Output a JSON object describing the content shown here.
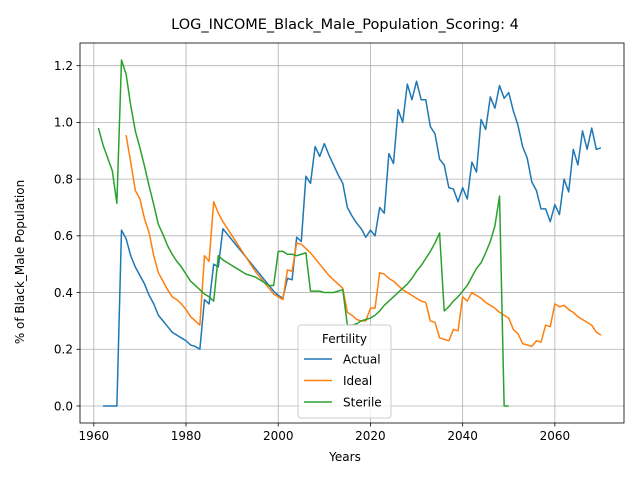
{
  "chart_data": {
    "type": "line",
    "title": "LOG_INCOME_Black_Male_Population_Scoring: 4",
    "xlabel": "Years",
    "ylabel": "% of Black_Male Population",
    "xlim": [
      1957,
      2075
    ],
    "ylim": [
      -0.06,
      1.28
    ],
    "xticks": [
      1960,
      1980,
      2000,
      2020,
      2040,
      2060
    ],
    "yticks": [
      0.0,
      0.2,
      0.4,
      0.6,
      0.8,
      1.0,
      1.2
    ],
    "ytick_labels": [
      "0.0",
      "0.2",
      "0.4",
      "0.6",
      "0.8",
      "1.0",
      "1.2"
    ],
    "grid": true,
    "legend_title": "Fertility",
    "legend_position": "lower center",
    "series": [
      {
        "name": "Actual",
        "color": "#1f77b4",
        "points": [
          [
            1962,
            0.0
          ],
          [
            1963,
            0.0
          ],
          [
            1964,
            0.0
          ],
          [
            1965,
            0.0
          ],
          [
            1966,
            0.62
          ],
          [
            1967,
            0.59
          ],
          [
            1968,
            0.53
          ],
          [
            1969,
            0.49
          ],
          [
            1970,
            0.46
          ],
          [
            1971,
            0.43
          ],
          [
            1972,
            0.39
          ],
          [
            1973,
            0.36
          ],
          [
            1974,
            0.32
          ],
          [
            1975,
            0.3
          ],
          [
            1976,
            0.28
          ],
          [
            1977,
            0.26
          ],
          [
            1978,
            0.25
          ],
          [
            1979,
            0.24
          ],
          [
            1980,
            0.23
          ],
          [
            1981,
            0.215
          ],
          [
            1982,
            0.21
          ],
          [
            1983,
            0.2
          ],
          [
            1984,
            0.375
          ],
          [
            1985,
            0.36
          ],
          [
            1986,
            0.5
          ],
          [
            1987,
            0.49
          ],
          [
            1988,
            0.625
          ],
          [
            1989,
            0.605
          ],
          [
            1990,
            0.585
          ],
          [
            1991,
            0.565
          ],
          [
            1992,
            0.545
          ],
          [
            1993,
            0.525
          ],
          [
            1994,
            0.505
          ],
          [
            1995,
            0.485
          ],
          [
            1996,
            0.465
          ],
          [
            1997,
            0.445
          ],
          [
            1998,
            0.425
          ],
          [
            1999,
            0.405
          ],
          [
            2000,
            0.39
          ],
          [
            2001,
            0.38
          ],
          [
            2002,
            0.45
          ],
          [
            2003,
            0.445
          ],
          [
            2004,
            0.595
          ],
          [
            2005,
            0.58
          ],
          [
            2006,
            0.81
          ],
          [
            2007,
            0.785
          ],
          [
            2008,
            0.915
          ],
          [
            2009,
            0.88
          ],
          [
            2010,
            0.925
          ],
          [
            2011,
            0.885
          ],
          [
            2012,
            0.85
          ],
          [
            2013,
            0.815
          ],
          [
            2014,
            0.785
          ],
          [
            2015,
            0.7
          ],
          [
            2016,
            0.67
          ],
          [
            2017,
            0.645
          ],
          [
            2018,
            0.625
          ],
          [
            2019,
            0.595
          ],
          [
            2020,
            0.62
          ],
          [
            2021,
            0.6
          ],
          [
            2022,
            0.7
          ],
          [
            2023,
            0.68
          ],
          [
            2024,
            0.89
          ],
          [
            2025,
            0.855
          ],
          [
            2026,
            1.045
          ],
          [
            2027,
            1.0
          ],
          [
            2028,
            1.135
          ],
          [
            2029,
            1.08
          ],
          [
            2030,
            1.145
          ],
          [
            2031,
            1.08
          ],
          [
            2032,
            1.08
          ],
          [
            2033,
            0.985
          ],
          [
            2034,
            0.96
          ],
          [
            2035,
            0.87
          ],
          [
            2036,
            0.85
          ],
          [
            2037,
            0.77
          ],
          [
            2038,
            0.765
          ],
          [
            2039,
            0.72
          ],
          [
            2040,
            0.77
          ],
          [
            2041,
            0.73
          ],
          [
            2042,
            0.86
          ],
          [
            2043,
            0.825
          ],
          [
            2044,
            1.01
          ],
          [
            2045,
            0.975
          ],
          [
            2046,
            1.09
          ],
          [
            2047,
            1.05
          ],
          [
            2048,
            1.13
          ],
          [
            2049,
            1.085
          ],
          [
            2050,
            1.105
          ],
          [
            2051,
            1.04
          ],
          [
            2052,
            0.99
          ],
          [
            2053,
            0.915
          ],
          [
            2054,
            0.875
          ],
          [
            2055,
            0.79
          ],
          [
            2056,
            0.76
          ],
          [
            2057,
            0.695
          ],
          [
            2058,
            0.695
          ],
          [
            2059,
            0.65
          ],
          [
            2060,
            0.71
          ],
          [
            2061,
            0.675
          ],
          [
            2062,
            0.8
          ],
          [
            2063,
            0.755
          ],
          [
            2064,
            0.905
          ],
          [
            2065,
            0.85
          ],
          [
            2066,
            0.97
          ],
          [
            2067,
            0.905
          ],
          [
            2068,
            0.98
          ],
          [
            2069,
            0.905
          ],
          [
            2070,
            0.91
          ]
        ]
      },
      {
        "name": "Ideal",
        "color": "#ff7f0e",
        "points": [
          [
            1967,
            0.955
          ],
          [
            1968,
            0.86
          ],
          [
            1969,
            0.76
          ],
          [
            1970,
            0.73
          ],
          [
            1971,
            0.66
          ],
          [
            1972,
            0.61
          ],
          [
            1973,
            0.53
          ],
          [
            1974,
            0.47
          ],
          [
            1975,
            0.44
          ],
          [
            1976,
            0.41
          ],
          [
            1977,
            0.385
          ],
          [
            1978,
            0.375
          ],
          [
            1979,
            0.36
          ],
          [
            1980,
            0.34
          ],
          [
            1981,
            0.315
          ],
          [
            1982,
            0.3
          ],
          [
            1983,
            0.285
          ],
          [
            1984,
            0.53
          ],
          [
            1985,
            0.51
          ],
          [
            1986,
            0.72
          ],
          [
            1987,
            0.68
          ],
          [
            1988,
            0.65
          ],
          [
            1989,
            0.625
          ],
          [
            1990,
            0.6
          ],
          [
            1991,
            0.575
          ],
          [
            1992,
            0.55
          ],
          [
            1993,
            0.525
          ],
          [
            1994,
            0.5
          ],
          [
            1995,
            0.475
          ],
          [
            1996,
            0.455
          ],
          [
            1997,
            0.435
          ],
          [
            1998,
            0.415
          ],
          [
            1999,
            0.395
          ],
          [
            2000,
            0.385
          ],
          [
            2001,
            0.375
          ],
          [
            2002,
            0.48
          ],
          [
            2003,
            0.475
          ],
          [
            2004,
            0.575
          ],
          [
            2005,
            0.57
          ],
          [
            2006,
            0.555
          ],
          [
            2007,
            0.54
          ],
          [
            2008,
            0.52
          ],
          [
            2009,
            0.5
          ],
          [
            2010,
            0.48
          ],
          [
            2011,
            0.46
          ],
          [
            2012,
            0.445
          ],
          [
            2013,
            0.43
          ],
          [
            2014,
            0.415
          ],
          [
            2015,
            0.33
          ],
          [
            2016,
            0.32
          ],
          [
            2017,
            0.305
          ],
          [
            2018,
            0.3
          ],
          [
            2019,
            0.3
          ],
          [
            2020,
            0.345
          ],
          [
            2021,
            0.345
          ],
          [
            2022,
            0.47
          ],
          [
            2023,
            0.465
          ],
          [
            2024,
            0.45
          ],
          [
            2025,
            0.44
          ],
          [
            2026,
            0.425
          ],
          [
            2027,
            0.41
          ],
          [
            2028,
            0.4
          ],
          [
            2029,
            0.39
          ],
          [
            2030,
            0.38
          ],
          [
            2031,
            0.37
          ],
          [
            2032,
            0.365
          ],
          [
            2033,
            0.3
          ],
          [
            2034,
            0.295
          ],
          [
            2035,
            0.24
          ],
          [
            2036,
            0.235
          ],
          [
            2037,
            0.23
          ],
          [
            2038,
            0.27
          ],
          [
            2039,
            0.265
          ],
          [
            2040,
            0.385
          ],
          [
            2041,
            0.37
          ],
          [
            2042,
            0.4
          ],
          [
            2043,
            0.39
          ],
          [
            2044,
            0.38
          ],
          [
            2045,
            0.365
          ],
          [
            2046,
            0.355
          ],
          [
            2047,
            0.345
          ],
          [
            2048,
            0.33
          ],
          [
            2049,
            0.32
          ],
          [
            2050,
            0.31
          ],
          [
            2051,
            0.27
          ],
          [
            2052,
            0.255
          ],
          [
            2053,
            0.22
          ],
          [
            2054,
            0.215
          ],
          [
            2055,
            0.21
          ],
          [
            2056,
            0.23
          ],
          [
            2057,
            0.225
          ],
          [
            2058,
            0.285
          ],
          [
            2059,
            0.28
          ],
          [
            2060,
            0.36
          ],
          [
            2061,
            0.35
          ],
          [
            2062,
            0.355
          ],
          [
            2063,
            0.34
          ],
          [
            2064,
            0.33
          ],
          [
            2065,
            0.315
          ],
          [
            2066,
            0.305
          ],
          [
            2067,
            0.295
          ],
          [
            2068,
            0.285
          ],
          [
            2069,
            0.26
          ],
          [
            2070,
            0.25
          ]
        ]
      },
      {
        "name": "Sterile",
        "color": "#2ca02c",
        "points": [
          [
            1961,
            0.98
          ],
          [
            1962,
            0.92
          ],
          [
            1963,
            0.875
          ],
          [
            1964,
            0.83
          ],
          [
            1965,
            0.715
          ],
          [
            1966,
            1.22
          ],
          [
            1967,
            1.17
          ],
          [
            1968,
            1.06
          ],
          [
            1969,
            0.97
          ],
          [
            1970,
            0.91
          ],
          [
            1971,
            0.845
          ],
          [
            1972,
            0.775
          ],
          [
            1973,
            0.71
          ],
          [
            1974,
            0.64
          ],
          [
            1975,
            0.605
          ],
          [
            1976,
            0.565
          ],
          [
            1977,
            0.535
          ],
          [
            1978,
            0.51
          ],
          [
            1979,
            0.49
          ],
          [
            1980,
            0.465
          ],
          [
            1981,
            0.44
          ],
          [
            1982,
            0.425
          ],
          [
            1983,
            0.41
          ],
          [
            1984,
            0.395
          ],
          [
            1985,
            0.385
          ],
          [
            1986,
            0.37
          ],
          [
            1987,
            0.53
          ],
          [
            1988,
            0.515
          ],
          [
            1989,
            0.505
          ],
          [
            1990,
            0.495
          ],
          [
            1991,
            0.485
          ],
          [
            1992,
            0.475
          ],
          [
            1993,
            0.465
          ],
          [
            1994,
            0.46
          ],
          [
            1995,
            0.455
          ],
          [
            1996,
            0.445
          ],
          [
            1997,
            0.435
          ],
          [
            1998,
            0.425
          ],
          [
            1999,
            0.425
          ],
          [
            2000,
            0.545
          ],
          [
            2001,
            0.545
          ],
          [
            2002,
            0.535
          ],
          [
            2003,
            0.535
          ],
          [
            2004,
            0.53
          ],
          [
            2005,
            0.535
          ],
          [
            2006,
            0.54
          ],
          [
            2007,
            0.405
          ],
          [
            2008,
            0.405
          ],
          [
            2009,
            0.405
          ],
          [
            2010,
            0.4
          ],
          [
            2011,
            0.4
          ],
          [
            2012,
            0.4
          ],
          [
            2013,
            0.405
          ],
          [
            2014,
            0.41
          ],
          [
            2015,
            0.285
          ],
          [
            2016,
            0.285
          ],
          [
            2017,
            0.29
          ],
          [
            2018,
            0.3
          ],
          [
            2019,
            0.305
          ],
          [
            2020,
            0.31
          ],
          [
            2021,
            0.32
          ],
          [
            2022,
            0.335
          ],
          [
            2023,
            0.355
          ],
          [
            2024,
            0.37
          ],
          [
            2025,
            0.385
          ],
          [
            2026,
            0.4
          ],
          [
            2027,
            0.415
          ],
          [
            2028,
            0.43
          ],
          [
            2029,
            0.45
          ],
          [
            2030,
            0.475
          ],
          [
            2031,
            0.495
          ],
          [
            2032,
            0.52
          ],
          [
            2033,
            0.545
          ],
          [
            2034,
            0.575
          ],
          [
            2035,
            0.61
          ],
          [
            2036,
            0.335
          ],
          [
            2037,
            0.35
          ],
          [
            2038,
            0.37
          ],
          [
            2039,
            0.385
          ],
          [
            2040,
            0.405
          ],
          [
            2041,
            0.425
          ],
          [
            2042,
            0.455
          ],
          [
            2043,
            0.485
          ],
          [
            2044,
            0.505
          ],
          [
            2045,
            0.54
          ],
          [
            2046,
            0.58
          ],
          [
            2047,
            0.635
          ],
          [
            2048,
            0.74
          ],
          [
            2049,
            0.0
          ],
          [
            2050,
            0.0
          ]
        ]
      }
    ]
  }
}
